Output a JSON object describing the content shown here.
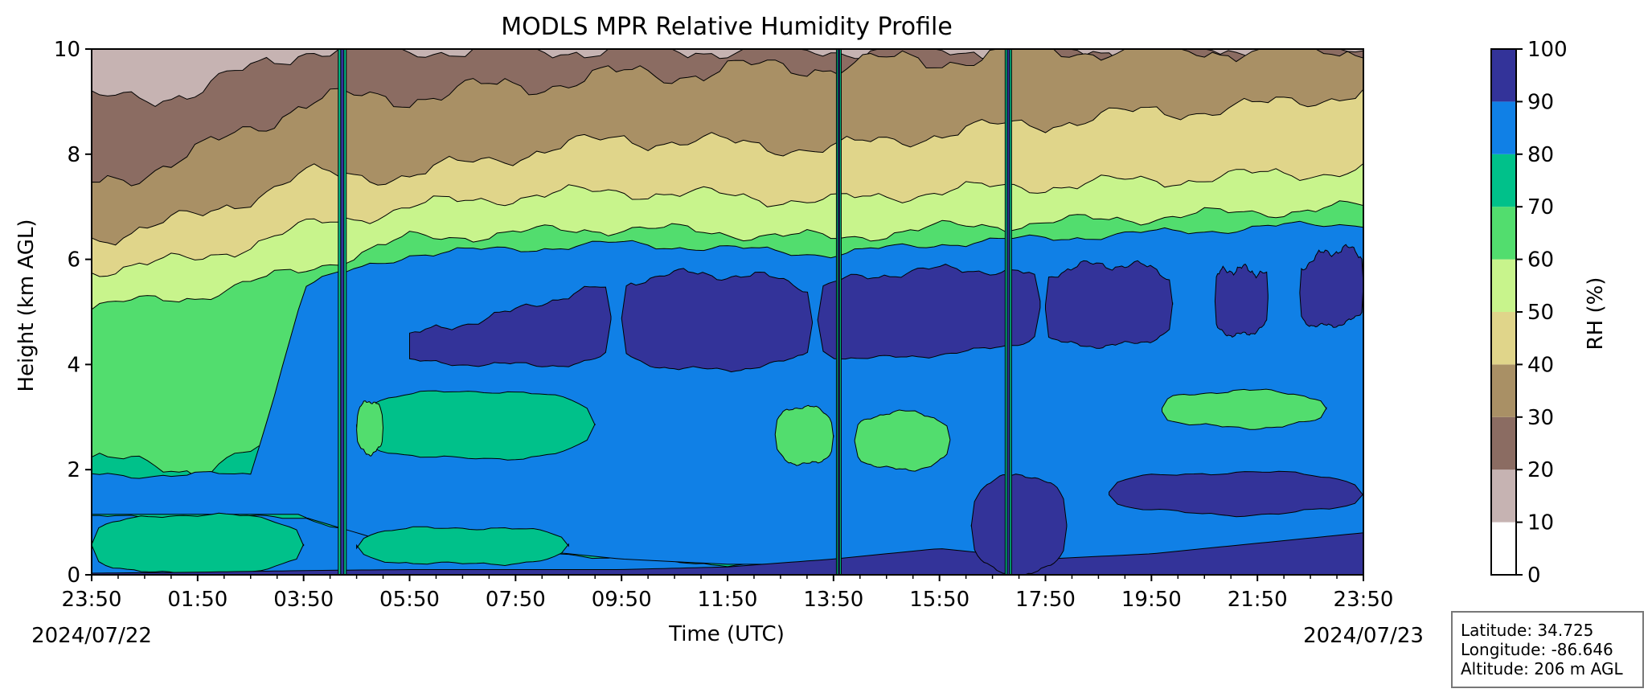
{
  "chart_data": {
    "type": "heatmap",
    "subtype": "filled-contour",
    "title": "MODLS MPR Relative Humidity Profile",
    "xlabel": "Time (UTC)",
    "ylabel": "Height (km AGL)",
    "x_tick_labels": [
      "23:50",
      "01:50",
      "03:50",
      "05:50",
      "07:50",
      "09:50",
      "11:50",
      "13:50",
      "15:50",
      "17:50",
      "19:50",
      "21:50",
      "23:50"
    ],
    "x_minor_ticks_per_major": 4,
    "date_left": "2024/07/22",
    "date_right": "2024/07/23",
    "xlim": [
      "2024/07/22 23:50",
      "2024/07/23 23:50"
    ],
    "ylim": [
      0,
      10
    ],
    "y_ticks": [
      0,
      2,
      4,
      6,
      8,
      10
    ],
    "colorbar": {
      "label": "RH (%)",
      "levels": [
        0,
        10,
        20,
        30,
        40,
        50,
        60,
        70,
        80,
        90,
        100
      ],
      "colors": [
        "#ffffff",
        "#c6b3b2",
        "#8b6c62",
        "#a99065",
        "#e0d58a",
        "#c8f48c",
        "#52dd6e",
        "#00c18a",
        "#1080e6",
        "#333399"
      ]
    },
    "approx_bands_km": {
      "comment": "approximate RH class boundaries (upper edge of each band) vs time, read from the contours",
      "times_h": [
        0,
        2,
        4,
        6,
        8,
        10,
        12,
        14,
        16,
        18,
        20,
        22,
        24
      ],
      "rh90_low_top": [
        0.03,
        0.05,
        0.08,
        0.1,
        0.1,
        0.1,
        0.15,
        0.3,
        0.5,
        0.3,
        0.4,
        0.6,
        0.8
      ],
      "rh80_top_lower": [
        1.1,
        1.1,
        1.1,
        0.5,
        0.5,
        0.3,
        0.2,
        0.2,
        0.2,
        0.1,
        0.1,
        0.1,
        0.1
      ],
      "rh70_top": [
        2.2,
        2.0,
        2.6,
        3.5,
        3.2,
        3.0,
        3.0,
        3.0,
        3.0,
        3.2,
        3.3,
        3.3,
        3.3
      ],
      "rh60_top": [
        5.1,
        5.3,
        5.8,
        6.4,
        6.5,
        6.6,
        6.5,
        6.4,
        6.6,
        6.7,
        6.8,
        6.9,
        7.0
      ],
      "rh50_top": [
        5.8,
        6.0,
        6.6,
        7.0,
        7.2,
        7.3,
        7.2,
        7.1,
        7.3,
        7.4,
        7.5,
        7.6,
        7.7
      ],
      "rh40_top": [
        6.4,
        6.8,
        7.6,
        7.6,
        8.0,
        8.3,
        8.2,
        8.1,
        8.4,
        8.6,
        8.8,
        8.9,
        9.2
      ],
      "rh30_top": [
        7.4,
        8.0,
        9.0,
        9.1,
        9.3,
        9.5,
        9.6,
        9.7,
        9.8,
        10.0,
        10.0,
        10.0,
        10.0
      ],
      "rh20_top": [
        9.0,
        9.2,
        10.0,
        10.0,
        10.0,
        10.0,
        10.0,
        10.0,
        10.0,
        10.0,
        10.0,
        10.0,
        10.0
      ],
      "rh90_upper_layer": {
        "bottom": [
          null,
          null,
          null,
          4.0,
          4.0,
          3.9,
          3.9,
          4.0,
          4.2,
          4.3,
          4.4,
          4.6,
          4.8
        ],
        "top": [
          null,
          null,
          null,
          4.6,
          5.0,
          5.8,
          5.7,
          5.7,
          5.8,
          5.9,
          5.9,
          5.8,
          6.3
        ]
      }
    }
  },
  "info": {
    "latitude": "Latitude: 34.725",
    "longitude": "Longitude: -86.646",
    "altitude": "Altitude: 206 m AGL"
  }
}
